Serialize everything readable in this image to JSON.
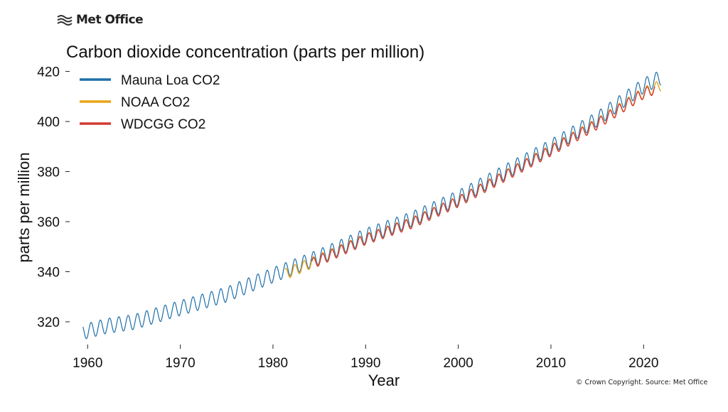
{
  "branding": {
    "logo_text": "Met Office",
    "copyright": "© Crown Copyright. Source: Met Office"
  },
  "chart_data": {
    "type": "line",
    "title": "Carbon dioxide concentration (parts per million)",
    "xlabel": "Year",
    "ylabel": "parts per million",
    "xlim": [
      1957.6,
      2026.5
    ],
    "ylim": [
      309.5,
      423
    ],
    "xticks": [
      1960,
      1970,
      1980,
      1990,
      2000,
      2010,
      2020
    ],
    "yticks": [
      320,
      340,
      360,
      380,
      400,
      420
    ],
    "grid": false,
    "legend_position": "top-left",
    "series": [
      {
        "name": "Mauna Loa CO2",
        "color": "#1f6fa8",
        "seasonal_amplitude": 3.0,
        "x": [
          1959.5,
          1962,
          1965,
          1970,
          1975,
          1980,
          1985,
          1990,
          1995,
          2000,
          2005,
          2010,
          2015,
          2020,
          2021.9
        ],
        "y": [
          315.9,
          318.3,
          319.9,
          325.5,
          330.9,
          338.6,
          346.0,
          354.3,
          361.0,
          369.5,
          379.7,
          389.9,
          401.0,
          414.3,
          417.6
        ]
      },
      {
        "name": "NOAA CO2",
        "color": "#e8a317",
        "seasonal_amplitude": 2.2,
        "x": [
          1981.3,
          1985,
          1990,
          1995,
          2000,
          2005,
          2010,
          2015,
          2020,
          2021.9
        ],
        "y": [
          339.0,
          344.8,
          353.0,
          359.5,
          368.0,
          378.2,
          388.5,
          399.2,
          411.5,
          414.5
        ]
      },
      {
        "name": "WDCGG CO2",
        "color": "#d23c32",
        "seasonal_amplitude": 2.1,
        "x": [
          1984.2,
          1985,
          1990,
          1995,
          2000,
          2005,
          2010,
          2015,
          2020,
          2021.2
        ],
        "y": [
          343.2,
          344.5,
          352.9,
          359.4,
          368.0,
          378.1,
          388.3,
          399.0,
          411.2,
          413.0
        ]
      }
    ]
  }
}
